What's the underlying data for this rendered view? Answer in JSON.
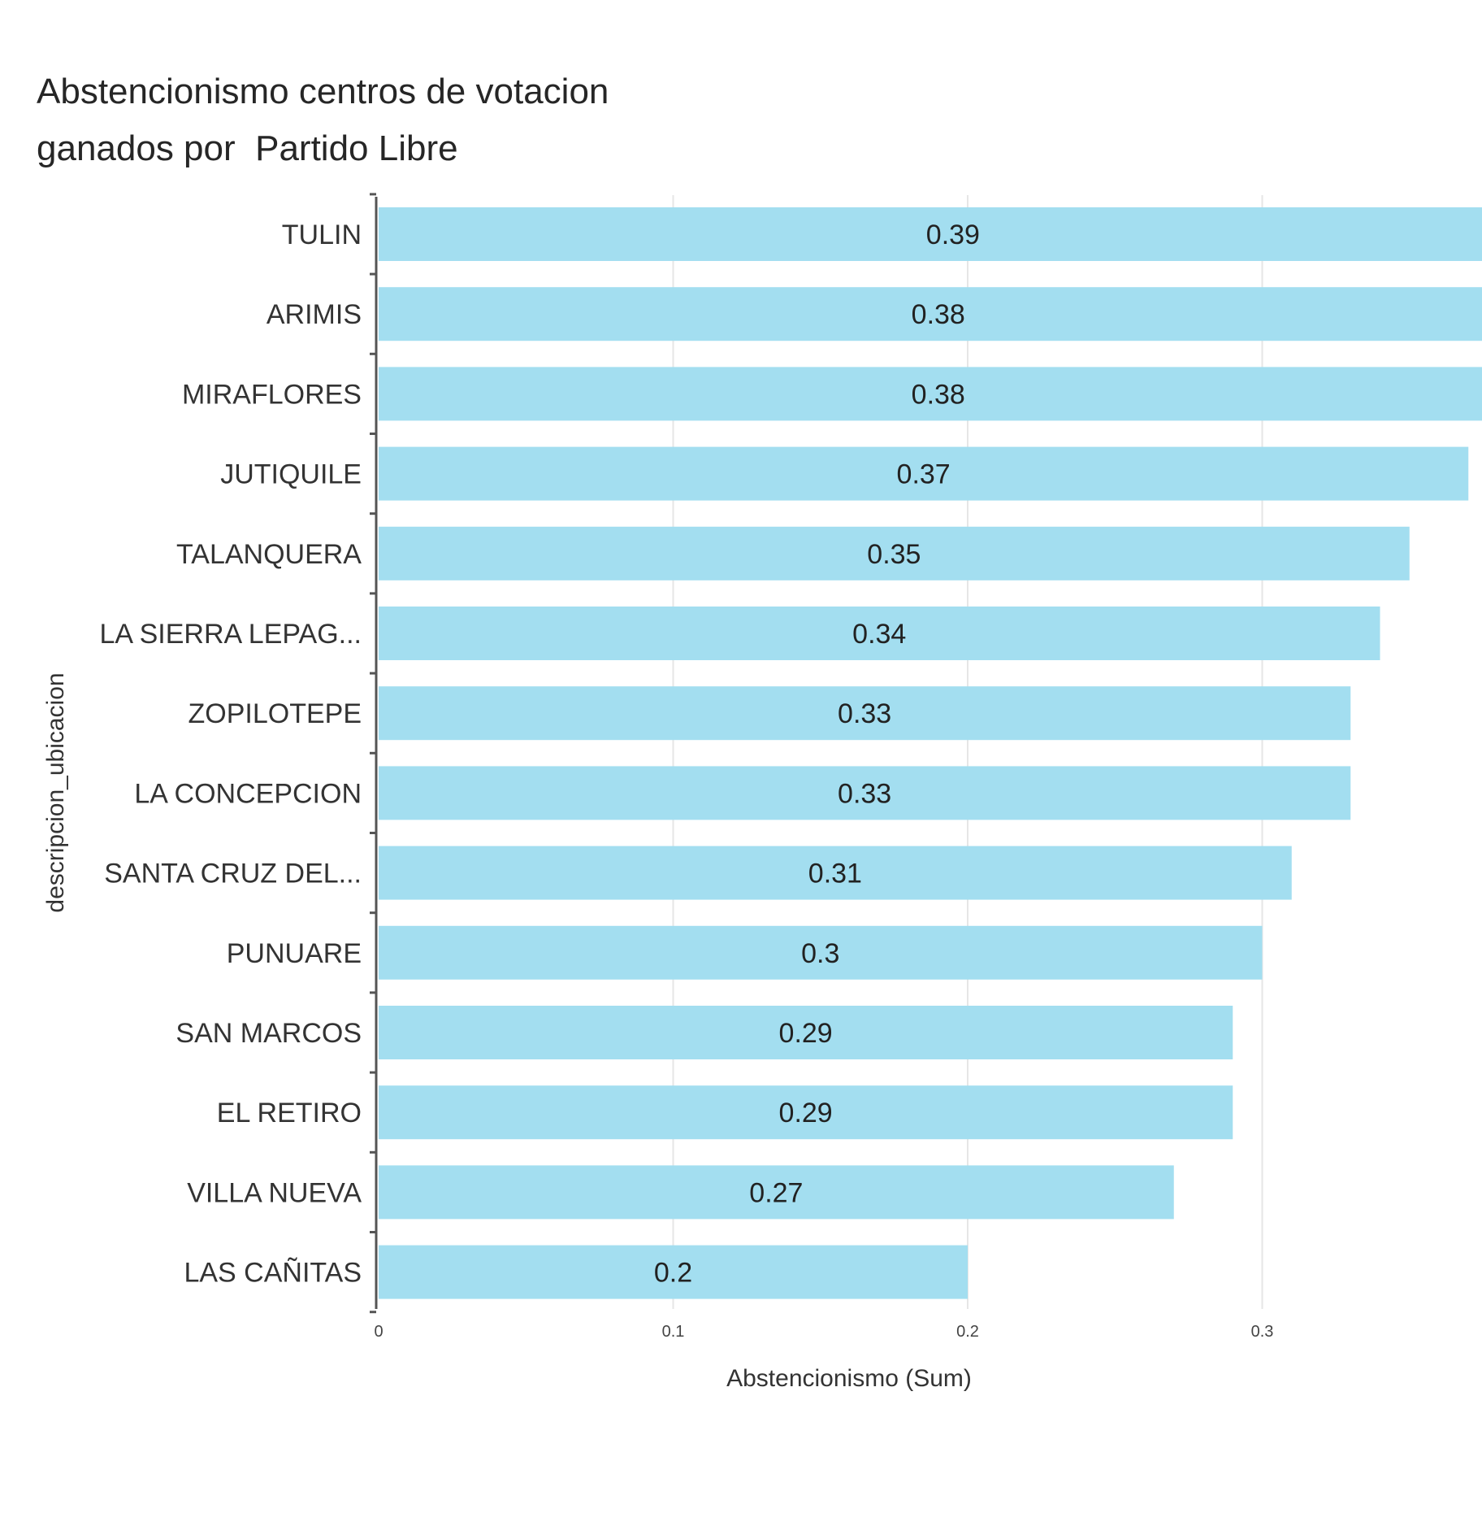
{
  "chart_data": {
    "type": "bar",
    "orientation": "horizontal",
    "title_line1": "Abstencionismo centros de votacion",
    "title_line2": "ganados por  Partido Libre",
    "xlabel": "Abstencionismo (Sum)",
    "ylabel": "descripcion_ubicacion",
    "xlim": [
      0,
      0.375
    ],
    "xticks": [
      "0",
      "0.1",
      "0.2",
      "0.3"
    ],
    "xtick_values": [
      0,
      0.1,
      0.2,
      0.3
    ],
    "grid": true,
    "bar_color": "#a3def0",
    "categories": [
      "TULIN",
      "ARIMIS",
      "MIRAFLORES",
      "JUTIQUILE",
      "TALANQUERA",
      "LA SIERRA LEPAG...",
      "ZOPILOTEPE",
      "LA CONCEPCION",
      "SANTA CRUZ DEL...",
      "PUNUARE",
      "SAN MARCOS",
      "EL RETIRO",
      "VILLA NUEVA",
      "LAS CAÑITAS"
    ],
    "values": [
      0.39,
      0.38,
      0.38,
      0.37,
      0.35,
      0.34,
      0.33,
      0.33,
      0.31,
      0.3,
      0.29,
      0.29,
      0.27,
      0.2
    ],
    "value_labels": [
      "0.39",
      "0.38",
      "0.38",
      "0.37",
      "0.35",
      "0.34",
      "0.33",
      "0.33",
      "0.31",
      "0.3",
      "0.29",
      "0.29",
      "0.27",
      "0.2"
    ]
  }
}
